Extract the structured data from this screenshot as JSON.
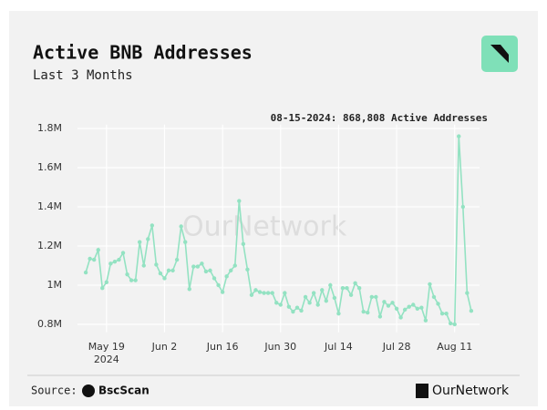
{
  "chart_data": {
    "type": "line",
    "title": "Active BNB Addresses",
    "subtitle": "Last 3 Months",
    "annotation": "08-15-2024: 868,808 Active Addresses",
    "source_label": "Source:",
    "source_name": "BscScan",
    "watermark": "OurNetwork",
    "brand": "OurNetwork",
    "x": [
      "2024-05-14",
      "2024-05-15",
      "2024-05-16",
      "2024-05-17",
      "2024-05-18",
      "2024-05-19",
      "2024-05-20",
      "2024-05-21",
      "2024-05-22",
      "2024-05-23",
      "2024-05-24",
      "2024-05-25",
      "2024-05-26",
      "2024-05-27",
      "2024-05-28",
      "2024-05-29",
      "2024-05-30",
      "2024-05-31",
      "2024-06-01",
      "2024-06-02",
      "2024-06-03",
      "2024-06-04",
      "2024-06-05",
      "2024-06-06",
      "2024-06-07",
      "2024-06-08",
      "2024-06-09",
      "2024-06-10",
      "2024-06-11",
      "2024-06-12",
      "2024-06-13",
      "2024-06-14",
      "2024-06-15",
      "2024-06-16",
      "2024-06-17",
      "2024-06-18",
      "2024-06-19",
      "2024-06-20",
      "2024-06-21",
      "2024-06-22",
      "2024-06-23",
      "2024-06-24",
      "2024-06-25",
      "2024-06-26",
      "2024-06-27",
      "2024-06-28",
      "2024-06-29",
      "2024-06-30",
      "2024-07-01",
      "2024-07-02",
      "2024-07-03",
      "2024-07-04",
      "2024-07-05",
      "2024-07-06",
      "2024-07-07",
      "2024-07-08",
      "2024-07-09",
      "2024-07-10",
      "2024-07-11",
      "2024-07-12",
      "2024-07-13",
      "2024-07-14",
      "2024-07-15",
      "2024-07-16",
      "2024-07-17",
      "2024-07-18",
      "2024-07-19",
      "2024-07-20",
      "2024-07-21",
      "2024-07-22",
      "2024-07-23",
      "2024-07-24",
      "2024-07-25",
      "2024-07-26",
      "2024-07-27",
      "2024-07-28",
      "2024-07-29",
      "2024-07-30",
      "2024-07-31",
      "2024-08-01",
      "2024-08-02",
      "2024-08-03",
      "2024-08-04",
      "2024-08-05",
      "2024-08-06",
      "2024-08-07",
      "2024-08-08",
      "2024-08-09",
      "2024-08-10",
      "2024-08-11",
      "2024-08-12",
      "2024-08-13",
      "2024-08-14",
      "2024-08-15"
    ],
    "series": [
      {
        "name": "Active Addresses",
        "color": "#93e2c2",
        "values": [
          1065000,
          1135000,
          1130000,
          1180000,
          985000,
          1015000,
          1110000,
          1120000,
          1130000,
          1165000,
          1055000,
          1025000,
          1025000,
          1220000,
          1100000,
          1235000,
          1305000,
          1105000,
          1060000,
          1035000,
          1075000,
          1075000,
          1130000,
          1300000,
          1220000,
          980000,
          1095000,
          1095000,
          1110000,
          1070000,
          1075000,
          1035000,
          1000000,
          965000,
          1045000,
          1075000,
          1100000,
          1430000,
          1210000,
          1080000,
          950000,
          975000,
          965000,
          960000,
          960000,
          960000,
          910000,
          900000,
          960000,
          890000,
          865000,
          885000,
          870000,
          940000,
          910000,
          960000,
          900000,
          975000,
          920000,
          1000000,
          935000,
          855000,
          985000,
          985000,
          950000,
          1010000,
          985000,
          865000,
          860000,
          940000,
          940000,
          840000,
          915000,
          895000,
          910000,
          880000,
          835000,
          875000,
          890000,
          900000,
          880000,
          885000,
          820000,
          1005000,
          940000,
          905000,
          855000,
          855000,
          805000,
          800000,
          1760000,
          1400000,
          960000,
          868808
        ]
      }
    ],
    "xlim": [
      "2024-05-12",
      "2024-08-17"
    ],
    "xticks": [
      {
        "value": "2024-05-19",
        "label": "May 19"
      },
      {
        "value": "2024-06-02",
        "label": "Jun 2"
      },
      {
        "value": "2024-06-16",
        "label": "Jun 16"
      },
      {
        "value": "2024-06-30",
        "label": "Jun 30"
      },
      {
        "value": "2024-07-14",
        "label": "Jul 14"
      },
      {
        "value": "2024-07-28",
        "label": "Jul 28"
      },
      {
        "value": "2024-08-11",
        "label": "Aug 11"
      }
    ],
    "x_year_label": "2024",
    "ylim": [
      760000,
      1820000
    ],
    "yticks": [
      {
        "value": 800000,
        "label": "0.8M"
      },
      {
        "value": 1000000,
        "label": "1M"
      },
      {
        "value": 1200000,
        "label": "1.2M"
      },
      {
        "value": 1400000,
        "label": "1.4M"
      },
      {
        "value": 1600000,
        "label": "1.6M"
      },
      {
        "value": 1800000,
        "label": "1.8M"
      }
    ],
    "grid": true
  }
}
